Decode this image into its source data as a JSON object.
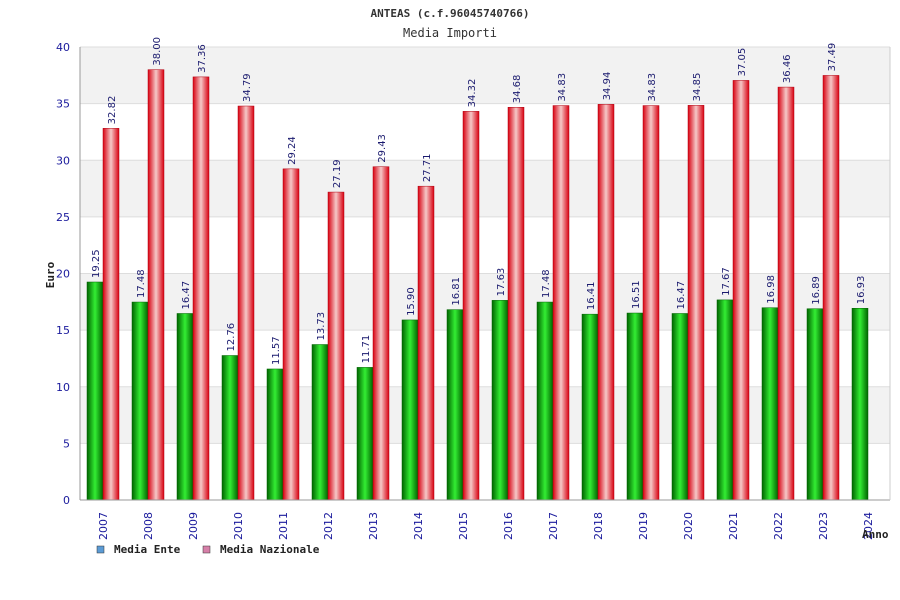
{
  "chart_data": {
    "type": "bar",
    "title": "ANTEAS (c.f.96045740766)",
    "subtitle": "Media Importi",
    "ylabel": "Euro",
    "xlabel": "Anno",
    "ylim": [
      0,
      40
    ],
    "yticks": [
      0,
      5,
      10,
      15,
      20,
      25,
      30,
      35,
      40
    ],
    "grid": true,
    "legend_position": "bottom-left",
    "categories": [
      "2007",
      "2008",
      "2009",
      "2010",
      "2011",
      "2012",
      "2013",
      "2014",
      "2015",
      "2016",
      "2017",
      "2018",
      "2019",
      "2020",
      "2021",
      "2022",
      "2023",
      "2024"
    ],
    "series": [
      {
        "name": "Media Ente",
        "color": "#00b000",
        "legend_color": "#5b9bd5",
        "values": [
          19.25,
          17.48,
          16.47,
          12.76,
          11.57,
          13.73,
          11.71,
          15.9,
          16.81,
          17.63,
          17.48,
          16.41,
          16.51,
          16.47,
          17.67,
          16.98,
          16.89,
          16.93
        ],
        "labels": [
          "19.25",
          "17.48",
          "16.47",
          "12.76",
          "11.57",
          "13.73",
          "11.71",
          "15.90",
          "16.81",
          "17.63",
          "17.48",
          "16.41",
          "16.51",
          "16.47",
          "17.67",
          "16.98",
          "16.89",
          "16.93"
        ]
      },
      {
        "name": "Media Nazionale",
        "color": "#e8202a",
        "legend_color": "#d67fa8",
        "values": [
          32.82,
          38.0,
          37.36,
          34.79,
          29.24,
          27.19,
          29.43,
          27.71,
          34.32,
          34.68,
          34.83,
          34.94,
          34.83,
          34.85,
          37.05,
          36.46,
          37.49,
          null
        ],
        "labels": [
          "32.82",
          "38.00",
          "37.36",
          "34.79",
          "29.24",
          "27.19",
          "29.43",
          "27.71",
          "34.32",
          "34.68",
          "34.83",
          "34.94",
          "34.83",
          "34.85",
          "37.05",
          "36.46",
          "37.49",
          null
        ]
      }
    ]
  }
}
